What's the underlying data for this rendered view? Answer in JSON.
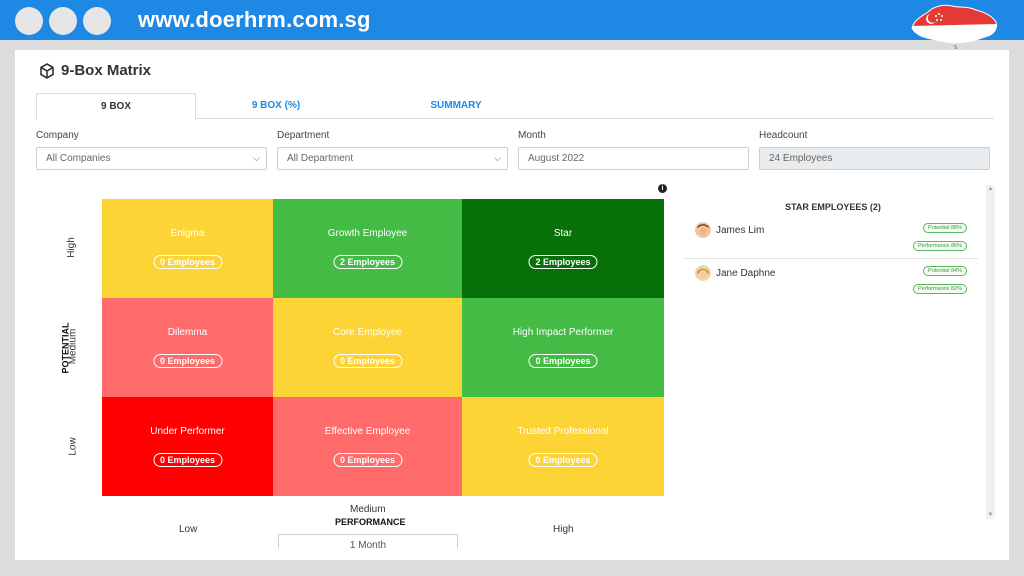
{
  "banner": {
    "url": "www.doerhrm.com.sg",
    "colors": {
      "bar": "#1e88e5",
      "dots": "#e6e6e6"
    },
    "flag_icon": "singapore-map-flag-icon"
  },
  "page": {
    "title": "9-Box Matrix",
    "title_icon": "cube-icon"
  },
  "tabs": [
    {
      "label": "9 BOX",
      "active": true
    },
    {
      "label": "9 BOX (%)",
      "active": false
    },
    {
      "label": "SUMMARY",
      "active": false
    }
  ],
  "filters": {
    "company": {
      "label": "Company",
      "value": "All Companies"
    },
    "department": {
      "label": "Department",
      "value": "All Department"
    },
    "month": {
      "label": "Month",
      "value": "August 2022"
    },
    "headcount": {
      "label": "Headcount",
      "value": "24 Employees"
    }
  },
  "matrix": {
    "y_axis_title": "POTENTIAL",
    "x_axis_title": "PERFORMANCE",
    "y_levels": [
      "High",
      "Medium",
      "Low"
    ],
    "x_levels": [
      "Low",
      "Medium",
      "High"
    ],
    "cells": [
      {
        "name": "Enigma",
        "count": "0 Employees",
        "color": "#fdd435"
      },
      {
        "name": "Growth Employee",
        "count": "2 Employees",
        "color": "#44bb44"
      },
      {
        "name": "Star",
        "count": "2 Employees",
        "color": "#087008"
      },
      {
        "name": "Dilemma",
        "count": "0 Employees",
        "color": "#ff6b6b"
      },
      {
        "name": "Core Employee",
        "count": "0 Employees",
        "color": "#fdd435"
      },
      {
        "name": "High Impact Performer",
        "count": "0 Employees",
        "color": "#44bb44"
      },
      {
        "name": "Under Performer",
        "count": "0 Employees",
        "color": "#ff0000"
      },
      {
        "name": "Effective Employee",
        "count": "0 Employees",
        "color": "#ff6b6b"
      },
      {
        "name": "Trusted Professional",
        "count": "0 Employees",
        "color": "#fdd435"
      }
    ],
    "bottom_box_text": "1 Month"
  },
  "star_panel": {
    "title": "STAR EMPLOYEES (2)",
    "employees": [
      {
        "name": "James Lim",
        "potential": "Potential 88%",
        "performance": "Performance 86%"
      },
      {
        "name": "Jane Daphne",
        "potential": "Potential 84%",
        "performance": "Performance 82%"
      }
    ]
  }
}
